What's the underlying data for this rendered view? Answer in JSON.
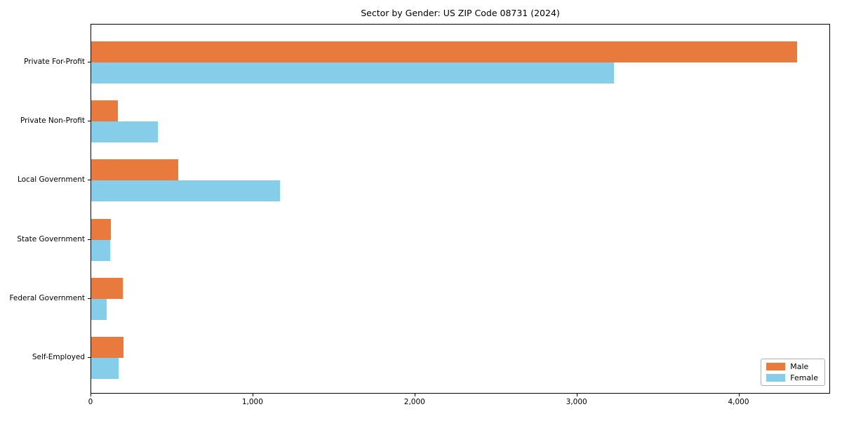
{
  "chart_data": {
    "type": "bar",
    "orientation": "horizontal",
    "title": "Sector by Gender: US ZIP Code 08731 (2024)",
    "categories": [
      "Private For-Profit",
      "Private Non-Profit",
      "Local Government",
      "State Government",
      "Federal Government",
      "Self-Employed"
    ],
    "series": [
      {
        "name": "Male",
        "color": "#e77a3c",
        "values": [
          4355,
          165,
          535,
          120,
          195,
          200
        ]
      },
      {
        "name": "Female",
        "color": "#85cde8",
        "values": [
          3225,
          410,
          1165,
          115,
          95,
          170
        ]
      }
    ],
    "xlabel": "",
    "ylabel": "",
    "xlim": [
      0,
      4565
    ],
    "x_ticks": [
      0,
      1000,
      2000,
      3000,
      4000
    ],
    "x_tick_labels": [
      "0",
      "1,000",
      "2,000",
      "3,000",
      "4,000"
    ],
    "grid": false,
    "legend": {
      "position": "lower right",
      "entries": [
        "Male",
        "Female"
      ]
    },
    "frame_color": "#000000",
    "background_color": "#ffffff"
  }
}
